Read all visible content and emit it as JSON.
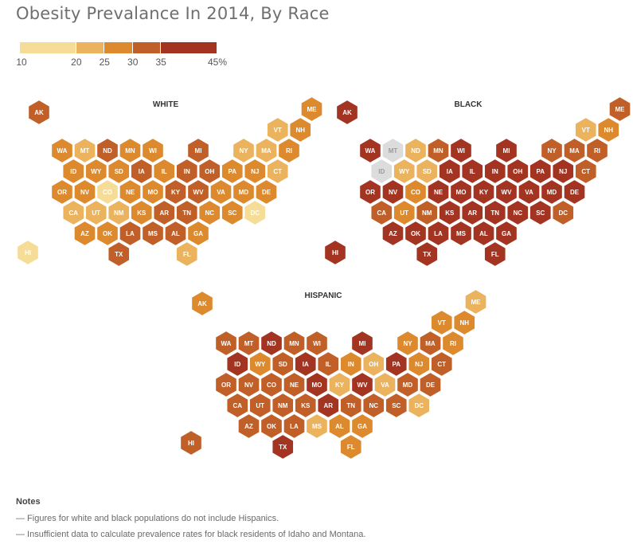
{
  "title": "Obesity Prevalance In 2014, By Race",
  "legend": {
    "bins": [
      {
        "from": 10,
        "to": 20,
        "color": "#f5dc97"
      },
      {
        "from": 20,
        "to": 25,
        "color": "#ebb35e"
      },
      {
        "from": 25,
        "to": 30,
        "color": "#dd8a2e"
      },
      {
        "from": 30,
        "to": 35,
        "color": "#c05f27"
      },
      {
        "from": 35,
        "to": 45,
        "color": "#a33422"
      }
    ],
    "ticks": [
      "10",
      "20",
      "25",
      "30",
      "35",
      "45%"
    ],
    "no_data_color": "#dcdcdc"
  },
  "chart_data": {
    "type": "hex-tile-map",
    "maps": [
      {
        "name": "WHITE",
        "states": {
          "AK": 4,
          "HI": 1,
          "ME": 3,
          "VT": 2,
          "NH": 3,
          "WA": 3,
          "MT": 2,
          "ND": 4,
          "MN": 3,
          "WI": 3,
          "MI": 4,
          "NY": 2,
          "MA": 2,
          "RI": 3,
          "ID": 3,
          "WY": 3,
          "SD": 3,
          "IA": 4,
          "IL": 3,
          "IN": 4,
          "OH": 4,
          "PA": 3,
          "NJ": 3,
          "CT": 2,
          "OR": 3,
          "NV": 3,
          "CO": 1,
          "NE": 3,
          "MO": 3,
          "KY": 4,
          "WV": 4,
          "VA": 3,
          "MD": 3,
          "DE": 3,
          "CA": 2,
          "UT": 2,
          "NM": 2,
          "KS": 3,
          "AR": 4,
          "TN": 4,
          "NC": 3,
          "SC": 3,
          "DC": 1,
          "AZ": 3,
          "OK": 3,
          "LA": 4,
          "MS": 4,
          "AL": 4,
          "GA": 3,
          "TX": 4,
          "FL": 2
        }
      },
      {
        "name": "BLACK",
        "states": {
          "AK": 5,
          "HI": 5,
          "ME": 4,
          "VT": 2,
          "NH": 3,
          "WA": 5,
          "MT": 0,
          "ND": 2,
          "MN": 4,
          "WI": 5,
          "MI": 5,
          "NY": 4,
          "MA": 4,
          "RI": 4,
          "ID": 0,
          "WY": 2,
          "SD": 2,
          "IA": 5,
          "IL": 5,
          "IN": 5,
          "OH": 5,
          "PA": 5,
          "NJ": 5,
          "CT": 4,
          "OR": 5,
          "NV": 5,
          "CO": 3,
          "NE": 5,
          "MO": 5,
          "KY": 5,
          "WV": 5,
          "VA": 5,
          "MD": 5,
          "DE": 5,
          "CA": 4,
          "UT": 3,
          "NM": 4,
          "KS": 5,
          "AR": 5,
          "TN": 5,
          "NC": 5,
          "SC": 5,
          "DC": 4,
          "AZ": 5,
          "OK": 5,
          "LA": 5,
          "MS": 5,
          "AL": 5,
          "GA": 5,
          "TX": 5,
          "FL": 5
        }
      },
      {
        "name": "HISPANIC",
        "states": {
          "AK": 3,
          "HI": 4,
          "ME": 2,
          "VT": 3,
          "NH": 3,
          "WA": 4,
          "MT": 4,
          "ND": 5,
          "MN": 4,
          "WI": 4,
          "MI": 5,
          "NY": 3,
          "MA": 4,
          "RI": 3,
          "ID": 5,
          "WY": 3,
          "SD": 4,
          "IA": 5,
          "IL": 4,
          "IN": 3,
          "OH": 2,
          "PA": 5,
          "NJ": 3,
          "CT": 4,
          "OR": 4,
          "NV": 4,
          "CO": 4,
          "NE": 4,
          "MO": 5,
          "KY": 2,
          "WV": 5,
          "VA": 2,
          "MD": 4,
          "DE": 4,
          "CA": 4,
          "UT": 4,
          "NM": 4,
          "KS": 4,
          "AR": 5,
          "TN": 4,
          "NC": 4,
          "SC": 4,
          "DC": 2,
          "AZ": 4,
          "OK": 4,
          "LA": 4,
          "MS": 2,
          "AL": 3,
          "GA": 3,
          "TX": 5,
          "FL": 3
        }
      }
    ]
  },
  "notes": {
    "title": "Notes",
    "items": [
      "— Figures for white and black populations do not include Hispanics.",
      "— Insufficient data to calculate prevalence rates for black residents of Idaho and Montana."
    ]
  }
}
